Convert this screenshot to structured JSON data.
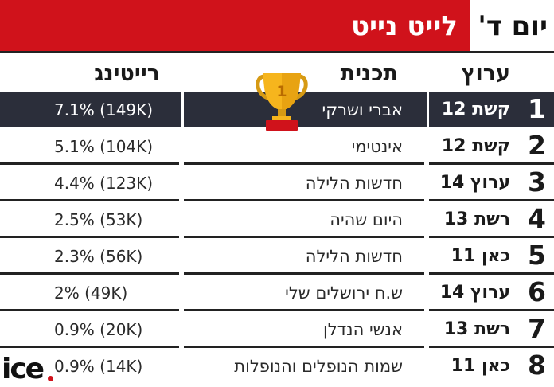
{
  "header": {
    "title": "לייט נייט",
    "day": "יום ד'",
    "accent_color": "#d0121b"
  },
  "columns": {
    "channel": "ערוץ",
    "show": "תכנית",
    "rating": "רייטינג"
  },
  "rows": [
    {
      "rank": "1",
      "channel": "קשת 12",
      "show": "אברי ושרקי",
      "rating": "7.1% (149K)"
    },
    {
      "rank": "2",
      "channel": "קשת 12",
      "show": "אינטימי",
      "rating": "5.1% (104K)"
    },
    {
      "rank": "3",
      "channel": "ערוץ 14",
      "show": "חדשות הלילה",
      "rating": "4.4% (123K)"
    },
    {
      "rank": "4",
      "channel": "רשת 13",
      "show": "היום שהיה",
      "rating": "2.5% (53K)"
    },
    {
      "rank": "5",
      "channel": "כאן 11",
      "show": "חדשות הלילה",
      "rating": "2.3% (56K)"
    },
    {
      "rank": "6",
      "channel": "ערוץ 14",
      "show": "ש.ח ירושלים שלי",
      "rating": "2% (49K)"
    },
    {
      "rank": "7",
      "channel": "רשת 13",
      "show": "אנשי הנדלן",
      "rating": "0.9% (20K)"
    },
    {
      "rank": "8",
      "channel": "כאן 11",
      "show": "שמות הנופלים והנופלות",
      "rating": "0.9% (14K)"
    }
  ],
  "trophy": {
    "icon": "trophy-icon",
    "number": "1"
  },
  "logo": {
    "text": "ice"
  }
}
